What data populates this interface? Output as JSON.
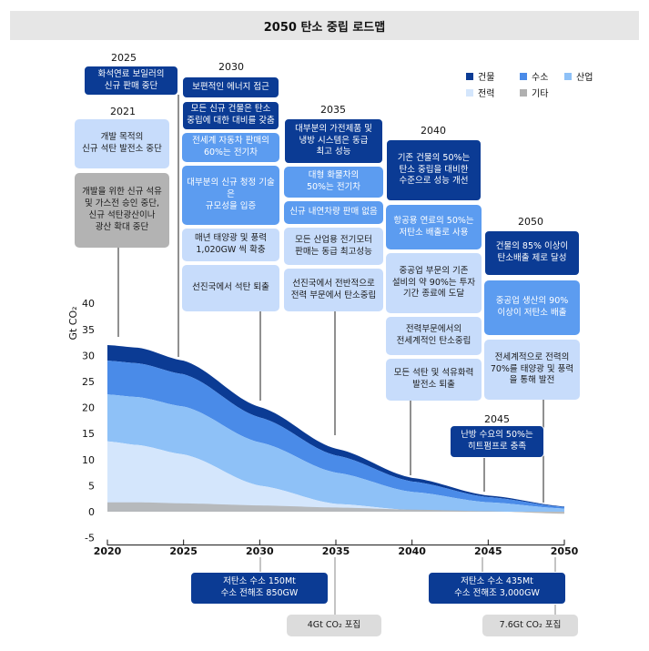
{
  "title": "2050 탄소 중립 로드맵",
  "legend": [
    {
      "label": "건물",
      "color": "#0b3b94"
    },
    {
      "label": "수소",
      "color": "#4a8be8"
    },
    {
      "label": "산업",
      "color": "#8ec1f7"
    },
    {
      "label": "전력",
      "color": "#d4e6fc"
    },
    {
      "label": "기타",
      "color": "#b0b0b0"
    }
  ],
  "milestones": {
    "y2025": {
      "year": "2025",
      "b1": "화석연료 보일러의\n신규 판매 중단"
    },
    "y2021": {
      "year": "2021",
      "b1": "개발 목적의\n신규 석탄 발전소 중단",
      "b2": "개발을 위한 신규 석유\n및 가스전 승인 중단,\n신규 석탄광산이나\n광산 확대 중단"
    },
    "y2030": {
      "year": "2030",
      "b1": "보편적인 에너지 접근",
      "b2": "모든 신규 건물은 탄소\n중립에 대한 대비를 갖춤",
      "b3": "전세계 자동차 판매의\n60%는 전기차",
      "b4": "대부분의 신규 청정 기술은\n규모성을 입증",
      "b5": "매년 태양광 및 풍력\n1,020GW 씩 확충",
      "b6": "선진국에서 석탄 퇴출"
    },
    "y2035": {
      "year": "2035",
      "b1": "대부분의 가전제품 및\n냉방 시스템은 동급\n최고 성능",
      "b2": "대형 화물차의\n50%는 전기차",
      "b3": "신규 내연차량 판매 없음",
      "b4": "모든 산업용 전기모터\n판매는 동급 최고성능",
      "b5": "선진국에서 전반적으로\n전력 부문에서 탄소중립"
    },
    "y2040": {
      "year": "2040",
      "b1": "기존 건물의 50%는\n탄소 중립을 대비한\n수준으로 성능 개선",
      "b2": "항공용 연료의 50%는\n저탄소 배출로 사용",
      "b3": "중공업 부문의 기존\n설비의 약 90%는 투자\n기간 종료에 도달",
      "b4": "전력부문에서의\n전세계적인 탄소중립",
      "b5": "모든 석탄 및 석유화력\n발전소 퇴출"
    },
    "y2045": {
      "year": "2045",
      "b1": "난방 수요의 50%는\n히트펌프로 충족"
    },
    "y2050": {
      "year": "2050",
      "b1": "건물의 85% 이상이\n탄소배출 제로 달성",
      "b2": "중공업 생산의 90%\n이상이 저탄소 배출",
      "b3": "전세계적으로 전력의\n70%를 태양광 및 풍력\n을 통해 발전"
    }
  },
  "bottom": {
    "h2030": "저탄소 수소 150Mt\n수소 전해조 850GW",
    "c2035": "4Gt CO₂ 포집",
    "h2045": "저탄소 수소 435Mt\n수소 전해조 3,000GW",
    "c2050": "7.6Gt CO₂ 포집"
  },
  "chart_data": {
    "type": "area",
    "ylabel": "Gt CO₂",
    "ylim": [
      -5,
      40
    ],
    "xlim": [
      2020,
      2050
    ],
    "x_ticks": [
      2020,
      2025,
      2030,
      2035,
      2040,
      2045,
      2050
    ],
    "y_ticks": [
      -5,
      0,
      5,
      10,
      15,
      20,
      25,
      30,
      35,
      40
    ],
    "x": [
      2020,
      2022,
      2025,
      2030,
      2035,
      2040,
      2045,
      2050
    ],
    "series": [
      {
        "name": "기타",
        "values": [
          1.8,
          1.8,
          1.6,
          1.2,
          0.8,
          0.4,
          0.1,
          -0.4
        ]
      },
      {
        "name": "전력",
        "values": [
          13.5,
          12.8,
          11.0,
          5.0,
          1.5,
          0.3,
          0.0,
          -0.4
        ]
      },
      {
        "name": "산업",
        "values": [
          9.0,
          9.2,
          9.2,
          8.3,
          6.0,
          3.5,
          1.8,
          0.6
        ]
      },
      {
        "name": "수소",
        "values": [
          6.5,
          6.5,
          6.2,
          4.8,
          3.3,
          2.0,
          1.0,
          0.3
        ]
      },
      {
        "name": "건물",
        "values": [
          3.0,
          3.0,
          2.6,
          2.0,
          1.3,
          0.7,
          0.3,
          0.1
        ]
      }
    ]
  }
}
